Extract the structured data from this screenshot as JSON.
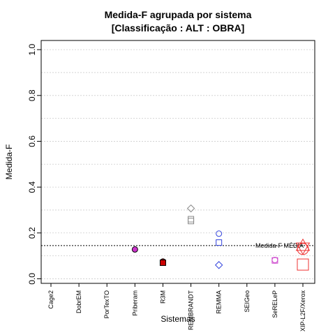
{
  "chart_data": {
    "type": "scatter",
    "title": "Medida-F agrupada por sistema",
    "subtitle": "[Classificação : ALT : OBRA]",
    "xlabel": "Sistemas",
    "ylabel": "Medida-F",
    "ylim": [
      -0.02,
      1.04
    ],
    "yticks": [
      "0.0",
      "0.2",
      "0.4",
      "0.6",
      "0.8",
      "1.0"
    ],
    "grid": "horizontal dotted",
    "categories": [
      "Cage2",
      "DobrEM",
      "PorTexTO",
      "Priberam",
      "R3M",
      "REMBRANDT",
      "REMMA",
      "SEIGeo",
      "SeRELeP",
      "XIP-L2F/Xerox"
    ],
    "reference_line": {
      "label": "Medida-F MÉDIA",
      "value": 0.145,
      "color": "#000000"
    },
    "points": [
      {
        "category": "Priberam",
        "value": 0.128,
        "shape": "circle",
        "color": "#000000",
        "fill": "#cc33cc",
        "size": 1
      },
      {
        "category": "R3M",
        "value": 0.075,
        "shape": "circle",
        "color": "#000000",
        "fill": "#cc0000",
        "size": 1
      },
      {
        "category": "R3M",
        "value": 0.07,
        "shape": "square",
        "color": "#000000",
        "fill": "#cc0000",
        "size": 1
      },
      {
        "category": "REMBRANDT",
        "value": 0.307,
        "shape": "diamond",
        "color": "#888888",
        "fill": "none",
        "size": 1
      },
      {
        "category": "REMBRANDT",
        "value": 0.26,
        "shape": "square",
        "color": "#888888",
        "fill": "none",
        "size": 1
      },
      {
        "category": "REMBRANDT",
        "value": 0.252,
        "shape": "square",
        "color": "#888888",
        "fill": "none",
        "size": 1
      },
      {
        "category": "REMMA",
        "value": 0.197,
        "shape": "circle",
        "color": "#3344dd",
        "fill": "none",
        "size": 1
      },
      {
        "category": "REMMA",
        "value": 0.158,
        "shape": "square",
        "color": "#3344dd",
        "fill": "none",
        "size": 1
      },
      {
        "category": "REMMA",
        "value": 0.06,
        "shape": "diamond",
        "color": "#3344dd",
        "fill": "none",
        "size": 1
      },
      {
        "category": "SeRELeP",
        "value": 0.082,
        "shape": "circle",
        "color": "#cc44cc",
        "fill": "none",
        "size": 1
      },
      {
        "category": "SeRELeP",
        "value": 0.08,
        "shape": "square",
        "color": "#cc44cc",
        "fill": "none",
        "size": 1
      },
      {
        "category": "XIP-L2F/Xerox",
        "value": 0.14,
        "shape": "star",
        "color": "#ee3333",
        "fill": "none",
        "size": 2
      },
      {
        "category": "XIP-L2F/Xerox",
        "value": 0.13,
        "shape": "circle",
        "color": "#ee3333",
        "fill": "none",
        "size": 2
      },
      {
        "category": "XIP-L2F/Xerox",
        "value": 0.062,
        "shape": "square",
        "color": "#ee3333",
        "fill": "none",
        "size": 2
      }
    ]
  }
}
